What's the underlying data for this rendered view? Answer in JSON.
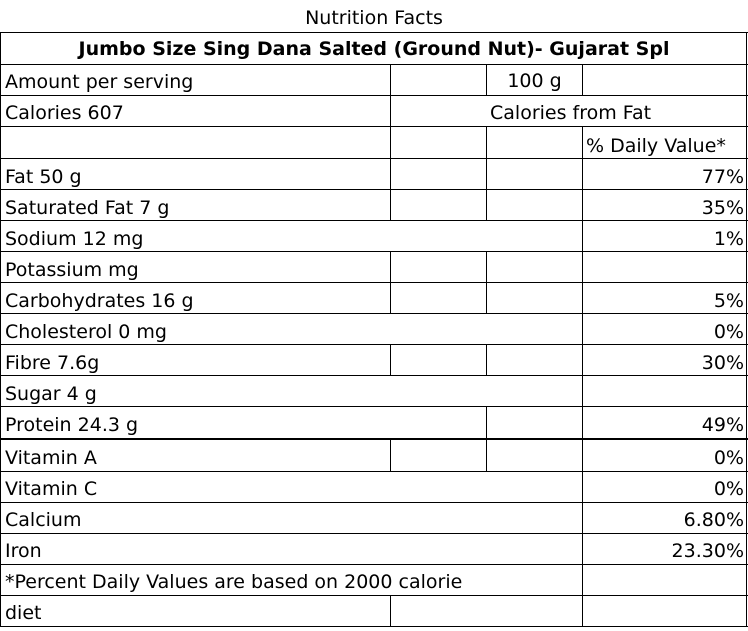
{
  "title": "Nutrition Facts",
  "product": "Jumbo Size Sing Dana Salted (Ground Nut)- Gujarat Spl",
  "amount_per_serving": {
    "label": "Amount per serving",
    "value": "100 g"
  },
  "calories": {
    "label": "Calories 607",
    "from_fat_label": "Calories from Fat"
  },
  "daily_value_header": "% Daily Value*",
  "nutrients": [
    {
      "name": "Fat 50 g",
      "dv": "77%"
    },
    {
      "name": "Saturated Fat 7 g",
      "dv": "35%"
    },
    {
      "name": "Sodium 12 mg",
      "dv": "1%"
    },
    {
      "name": "Potassium  mg",
      "dv": ""
    },
    {
      "name": "Carbohydrates 16 g",
      "dv": "5%"
    },
    {
      "name": "Cholesterol 0 mg",
      "dv": "0%"
    },
    {
      "name": "Fibre 7.6g",
      "dv": "30%"
    },
    {
      "name": "Sugar 4 g",
      "dv": ""
    },
    {
      "name": "Protein 24.3 g",
      "dv": "49%"
    },
    {
      "name": "Vitamin A",
      "dv": "0%"
    },
    {
      "name": "Vitamin C",
      "dv": "0%"
    },
    {
      "name": "Calcium",
      "dv": "6.80%"
    },
    {
      "name": "Iron",
      "dv": "23.30%"
    }
  ],
  "footnote": {
    "line1": "*Percent Daily Values are based on 2000 calorie",
    "line2": "diet"
  }
}
